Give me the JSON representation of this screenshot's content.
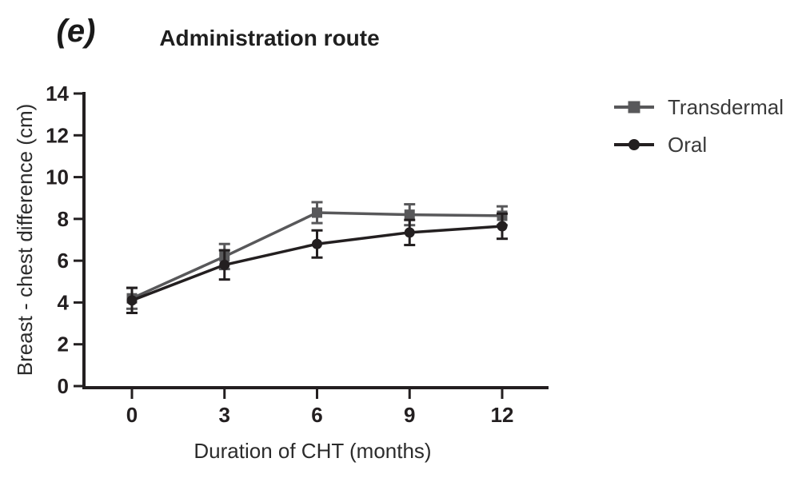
{
  "figure": {
    "panel_label": "(e)"
  },
  "chart_data": {
    "type": "line",
    "title": "Administration route",
    "xlabel": "Duration of CHT (months)",
    "ylabel": "Breast - chest difference (cm)",
    "x": [
      0,
      3,
      6,
      9,
      12
    ],
    "xticks": [
      "0",
      "3",
      "6",
      "9",
      "12"
    ],
    "yticks": [
      "0",
      "2",
      "4",
      "6",
      "8",
      "10",
      "12",
      "14"
    ],
    "ytick_values": [
      0,
      2,
      4,
      6,
      8,
      10,
      12,
      14
    ],
    "xlim": [
      -1.6,
      13.5
    ],
    "ylim": [
      0,
      14
    ],
    "grid": false,
    "legend_position": "right",
    "error_bar_type": "symmetric",
    "series": [
      {
        "name": "Transdermal",
        "marker": "square",
        "color": "#58585a",
        "values": [
          4.2,
          6.2,
          8.3,
          8.2,
          8.15
        ],
        "errors": [
          0.5,
          0.6,
          0.5,
          0.5,
          0.45
        ]
      },
      {
        "name": "Oral",
        "marker": "circle",
        "color": "#231f20",
        "values": [
          4.1,
          5.8,
          6.8,
          7.35,
          7.65
        ],
        "errors": [
          0.6,
          0.7,
          0.65,
          0.6,
          0.6
        ]
      }
    ]
  }
}
